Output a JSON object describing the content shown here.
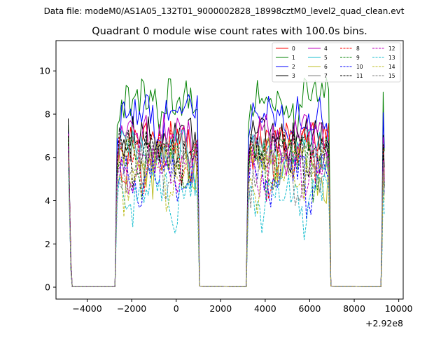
{
  "suptitle": "Data file: modeM0/AS1A05_132T01_9000002828_18998cztM0_level2_quad_clean.evt",
  "chart_data": {
    "type": "line",
    "title": "Quadrant 0 module wise count rates with 100.0s bins.",
    "xlabel": "",
    "ylabel": "",
    "x_offset_label": "+2.92e8",
    "xlim": [
      -5400,
      10200
    ],
    "ylim": [
      -0.55,
      11.4
    ],
    "xticks": [
      -4000,
      -2000,
      0,
      2000,
      4000,
      6000,
      8000,
      10000
    ],
    "xtick_labels": [
      "−4000",
      "−2000",
      "0",
      "2000",
      "4000",
      "6000",
      "8000",
      "10000"
    ],
    "yticks": [
      0,
      2,
      4,
      6,
      8,
      10
    ],
    "ytick_labels": [
      "0",
      "2",
      "4",
      "6",
      "8",
      "10"
    ],
    "grid": false,
    "legend_position": "top-right",
    "segments": [
      {
        "start": -4850,
        "end": -2750
      },
      {
        "start": -2750,
        "end": 1050
      },
      {
        "start": 1050,
        "end": 3150
      },
      {
        "start": 3150,
        "end": 6950
      },
      {
        "start": 6950,
        "end": 9350
      }
    ],
    "series": [
      {
        "name": "0",
        "color": "#ff0000",
        "dash": false,
        "base": 6.9,
        "amp": 0.85,
        "start": 7.3
      },
      {
        "name": "1",
        "color": "#008000",
        "dash": false,
        "base": 8.8,
        "amp": 0.9,
        "start": 7.5
      },
      {
        "name": "2",
        "color": "#0000ff",
        "dash": false,
        "base": 8.1,
        "amp": 0.85,
        "start": 7.2
      },
      {
        "name": "3",
        "color": "#000000",
        "dash": false,
        "base": 7.1,
        "amp": 0.8,
        "start": 7.8
      },
      {
        "name": "4",
        "color": "#bf00bf",
        "dash": false,
        "base": 7.2,
        "amp": 0.85,
        "start": 7.1
      },
      {
        "name": "5",
        "color": "#17becf",
        "dash": false,
        "base": 6.5,
        "amp": 0.8,
        "start": 6.8
      },
      {
        "name": "6",
        "color": "#bcbd22",
        "dash": false,
        "base": 6.1,
        "amp": 0.8,
        "start": 6.6
      },
      {
        "name": "7",
        "color": "#7f7f7f",
        "dash": false,
        "base": 6.4,
        "amp": 0.8,
        "start": 6.7
      },
      {
        "name": "8",
        "color": "#ff0000",
        "dash": true,
        "base": 6.5,
        "amp": 0.8,
        "start": 7.0
      },
      {
        "name": "9",
        "color": "#008000",
        "dash": true,
        "base": 6.2,
        "amp": 0.8,
        "start": 6.9
      },
      {
        "name": "10",
        "color": "#0000ff",
        "dash": true,
        "base": 5.4,
        "amp": 0.8,
        "start": 6.3
      },
      {
        "name": "11",
        "color": "#000000",
        "dash": true,
        "base": 6.6,
        "amp": 0.8,
        "start": 7.0
      },
      {
        "name": "12",
        "color": "#bf00bf",
        "dash": true,
        "base": 6.0,
        "amp": 0.8,
        "start": 6.5
      },
      {
        "name": "13",
        "color": "#17becf",
        "dash": true,
        "base": 4.6,
        "amp": 0.7,
        "start": 5.5
      },
      {
        "name": "14",
        "color": "#bcbd22",
        "dash": true,
        "base": 5.6,
        "amp": 0.8,
        "start": 6.2
      },
      {
        "name": "15",
        "color": "#7f7f7f",
        "dash": true,
        "base": 5.9,
        "amp": 0.8,
        "start": 6.4
      }
    ]
  }
}
